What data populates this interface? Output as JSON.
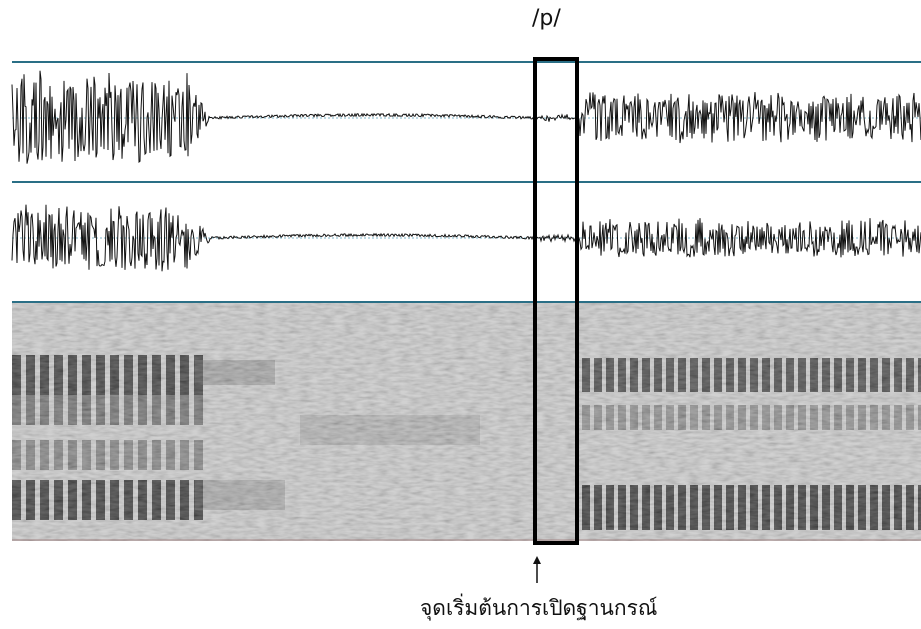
{
  "figure": {
    "phoneme_label": "/p/",
    "onset_label": "จุดเริ่มต้นการเปิดฐานกรณ์"
  },
  "colors": {
    "channel_rule": "#2a6f86",
    "waveform": "#111111",
    "zero_line": "#7fb6c8",
    "highlight_box": "#000000"
  },
  "panels": [
    "waveform-channel-1",
    "waveform-channel-2",
    "spectrogram"
  ],
  "icons": [
    "up-arrow-icon"
  ]
}
